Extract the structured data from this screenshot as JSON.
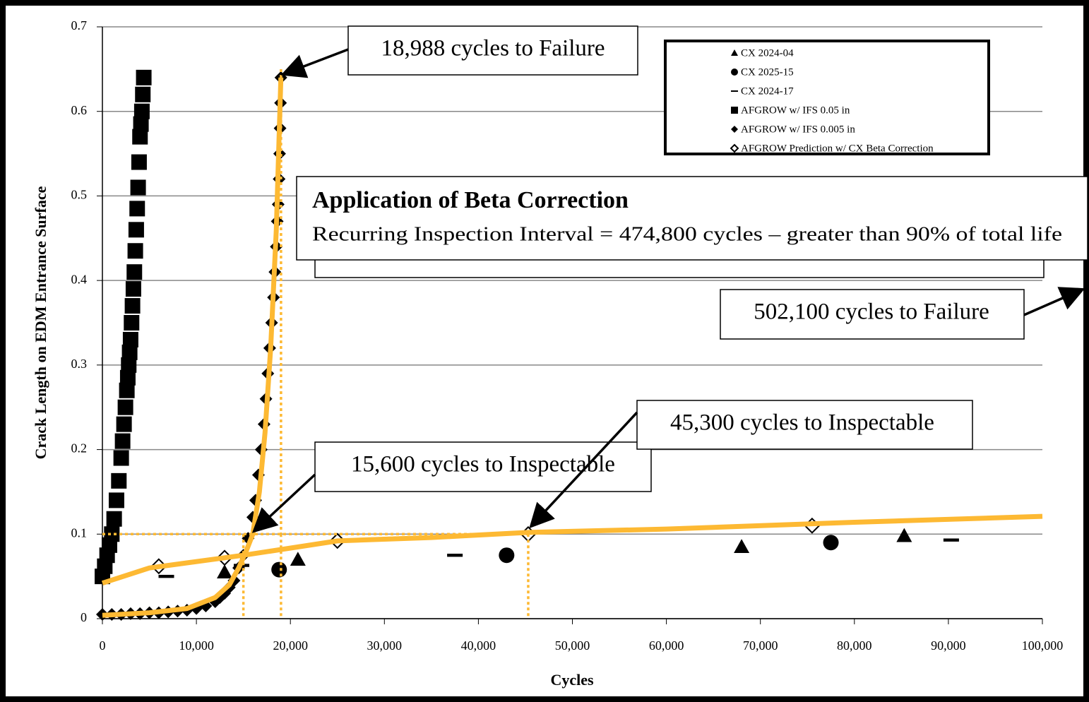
{
  "chart_data": {
    "type": "scatter",
    "x_label": "Cycles",
    "y_label": "Crack Length on EDM Entrance Surface",
    "xlim": [
      0,
      100000
    ],
    "ylim": [
      0,
      0.7
    ],
    "xticks": [
      0,
      {
        "value": 10000,
        "label": "10,000"
      },
      {
        "value": 20000,
        "label": "20,000"
      },
      {
        "value": 30000,
        "label": "30,000"
      },
      {
        "value": 40000,
        "label": "40,000"
      },
      {
        "value": 50000,
        "label": "50,000"
      },
      {
        "value": 60000,
        "label": "60,000"
      },
      {
        "value": 70000,
        "label": "70,000"
      },
      {
        "value": 80000,
        "label": "80,000"
      },
      {
        "value": 90000,
        "label": "90,000"
      },
      {
        "value": 100000,
        "label": "100,000"
      }
    ],
    "yticks": [
      0,
      0.1,
      0.2,
      0.3,
      0.4,
      0.5,
      0.6,
      0.7
    ],
    "grid": true,
    "legend": "upper right",
    "series": [
      {
        "name": "CX 2024-04",
        "color": "#000000",
        "marker": "triangle",
        "x": [
          13000,
          20800,
          68000,
          85300
        ],
        "values": [
          0.055,
          0.07,
          0.085,
          0.098
        ]
      },
      {
        "name": "CX 2025-15",
        "color": "#000000",
        "marker": "circle",
        "x": [
          18800,
          43000,
          77500
        ],
        "values": [
          0.058,
          0.075,
          0.09
        ]
      },
      {
        "name": "CX 2024-17",
        "color": "#000000",
        "marker": "dash",
        "x": [
          6800,
          14800,
          37500,
          90300
        ],
        "values": [
          0.05,
          0.063,
          0.075,
          0.093
        ]
      },
      {
        "name": "AFGROW w/ IFS 0.05 in",
        "color": "#000000",
        "marker": "square",
        "x": [
          0,
          250,
          500,
          750,
          1000,
          1250,
          1500,
          1750,
          2000,
          2150,
          2300,
          2450,
          2600,
          2700,
          2800,
          2900,
          3000,
          3100,
          3200,
          3300,
          3400,
          3500,
          3600,
          3700,
          3800,
          3900,
          4000,
          4100,
          4200,
          4300,
          4400
        ],
        "values": [
          0.05,
          0.062,
          0.075,
          0.087,
          0.1,
          0.118,
          0.14,
          0.163,
          0.19,
          0.21,
          0.23,
          0.25,
          0.27,
          0.285,
          0.3,
          0.315,
          0.33,
          0.35,
          0.37,
          0.39,
          0.41,
          0.435,
          0.46,
          0.485,
          0.51,
          0.54,
          0.57,
          0.585,
          0.6,
          0.62,
          0.64
        ]
      },
      {
        "name": "AFGROW w/ IFS 0.005 in",
        "color": "#000000",
        "marker": "diamond",
        "x": [
          0,
          1000,
          2000,
          3000,
          4000,
          5000,
          6000,
          7000,
          8000,
          9000,
          10000,
          11000,
          12000,
          12500,
          13000,
          13500,
          14000,
          14500,
          15000,
          15500,
          16000,
          16300,
          16600,
          16900,
          17200,
          17400,
          17600,
          17800,
          18000,
          18200,
          18350,
          18500,
          18600,
          18700,
          18800,
          18850,
          18900,
          18950,
          18988
        ],
        "values": [
          0.005,
          0.005,
          0.005,
          0.006,
          0.006,
          0.007,
          0.007,
          0.008,
          0.009,
          0.01,
          0.012,
          0.015,
          0.02,
          0.025,
          0.03,
          0.037,
          0.045,
          0.06,
          0.075,
          0.095,
          0.12,
          0.14,
          0.17,
          0.2,
          0.23,
          0.26,
          0.29,
          0.32,
          0.35,
          0.38,
          0.41,
          0.44,
          0.47,
          0.49,
          0.52,
          0.55,
          0.58,
          0.61,
          0.64
        ]
      },
      {
        "name": "AFGROW Prediction w/ CX Beta Correction",
        "color": "#000000",
        "marker": "open-diamond",
        "x": [
          6000,
          13000,
          25000,
          45300,
          75500
        ],
        "values": [
          0.062,
          0.072,
          0.092,
          0.1,
          0.11
        ]
      }
    ],
    "fit_lines": [
      {
        "color": "#fdb933",
        "x": [
          0,
          5000,
          9000,
          12000,
          13500,
          14500,
          15300,
          16000,
          16700,
          17300,
          17900,
          18500,
          18988
        ],
        "values": [
          0.004,
          0.007,
          0.012,
          0.025,
          0.04,
          0.06,
          0.08,
          0.1,
          0.15,
          0.22,
          0.32,
          0.46,
          0.64
        ]
      },
      {
        "color": "#fdb933",
        "x": [
          0,
          5000,
          15000,
          25000,
          35000,
          45300,
          60000,
          80000,
          100000
        ],
        "values": [
          0.042,
          0.06,
          0.075,
          0.092,
          0.096,
          0.102,
          0.106,
          0.114,
          0.121
        ]
      }
    ],
    "ref_lines": {
      "color": "#fdb933",
      "y": 0.1,
      "x": [
        15000,
        19000,
        45300
      ]
    },
    "annotations": [
      "18,988 cycles to Failure",
      "15,600 cycles to Inspectable",
      "45,300 cycles to Inspectable",
      "502,100 cycles to Failure"
    ],
    "callout": {
      "title": "Application of Beta Correction",
      "text": "Recurring Inspection Interval = 474,800 cycles – greater than 90% of total life",
      "color": "#fdb933"
    }
  }
}
